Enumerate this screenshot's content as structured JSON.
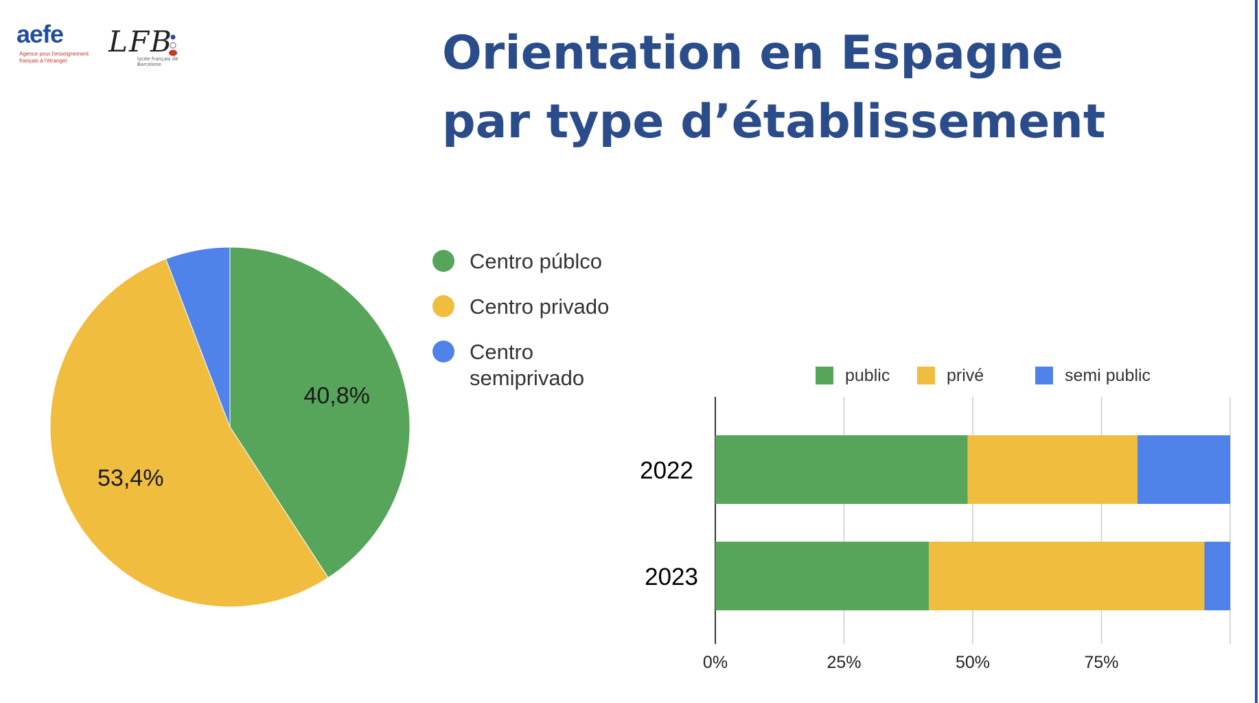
{
  "header": {
    "title_line1": "Orientation en Espagne",
    "title_line2": "par type d’établissement"
  },
  "logos": {
    "aefe": {
      "word": "aefe",
      "tagline": "Agence pour l'enseignement français à l'étranger"
    },
    "lfb": {
      "word": "LFB",
      "tagline": "lycée français de Barcelone"
    }
  },
  "colors": {
    "green": "#57a55a",
    "yellow": "#f1bd3f",
    "blue": "#5083ea",
    "title": "#2b4c8a"
  },
  "chart_data": [
    {
      "type": "pie",
      "legend_position": "right",
      "slices": [
        {
          "name": "Centro públco",
          "value": 40.8,
          "label": "40,8%",
          "color": "#57a55a"
        },
        {
          "name": "Centro privado",
          "value": 53.4,
          "label": "53,4%",
          "color": "#f1bd3f"
        },
        {
          "name": "Centro semiprivado",
          "value": 5.8,
          "label": "",
          "color": "#5083ea"
        }
      ],
      "legend": [
        {
          "lines": [
            "Centro públco"
          ],
          "color": "#57a55a"
        },
        {
          "lines": [
            "Centro privado"
          ],
          "color": "#f1bd3f"
        },
        {
          "lines": [
            "Centro",
            "semiprivado"
          ],
          "color": "#5083ea"
        }
      ]
    },
    {
      "type": "bar",
      "orientation": "horizontal",
      "stacked": "percent",
      "legend_position": "top",
      "grid": true,
      "categories": [
        "2022",
        "2023"
      ],
      "series": [
        {
          "name": "public",
          "color": "#57a55a",
          "values": [
            49,
            41.5
          ]
        },
        {
          "name": "privé",
          "color": "#f1bd3f",
          "values": [
            33,
            53.5
          ]
        },
        {
          "name": "semi public",
          "color": "#5083ea",
          "values": [
            18,
            5
          ]
        }
      ],
      "xlim": [
        0,
        100
      ],
      "x_ticks": [
        0,
        25,
        50,
        75,
        100
      ],
      "x_tick_labels": [
        "0%",
        "25%",
        "50%",
        "75%",
        ""
      ]
    }
  ]
}
